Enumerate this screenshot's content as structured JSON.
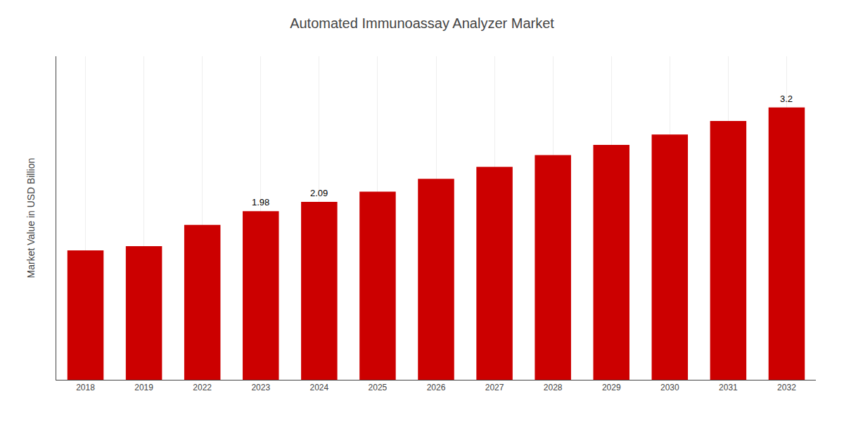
{
  "chart_data": {
    "type": "bar",
    "title": "Automated Immunoassay Analyzer Market",
    "ylabel": "Market Value in USD Billion",
    "categories": [
      "2018",
      "2019",
      "2022",
      "2023",
      "2024",
      "2025",
      "2026",
      "2027",
      "2028",
      "2029",
      "2030",
      "2031",
      "2032"
    ],
    "values": [
      1.52,
      1.57,
      1.82,
      1.98,
      2.09,
      2.21,
      2.36,
      2.5,
      2.64,
      2.76,
      2.88,
      3.04,
      3.2
    ],
    "color": "#CC0000",
    "ylim": [
      0,
      3.8
    ],
    "yticks": [],
    "grid": "x",
    "tick_labels": "x",
    "annotations": [
      {
        "x": "2023",
        "text": "1.98"
      },
      {
        "x": "2024",
        "text": "2.09"
      },
      {
        "x": "2032",
        "text": "3.2"
      }
    ]
  }
}
